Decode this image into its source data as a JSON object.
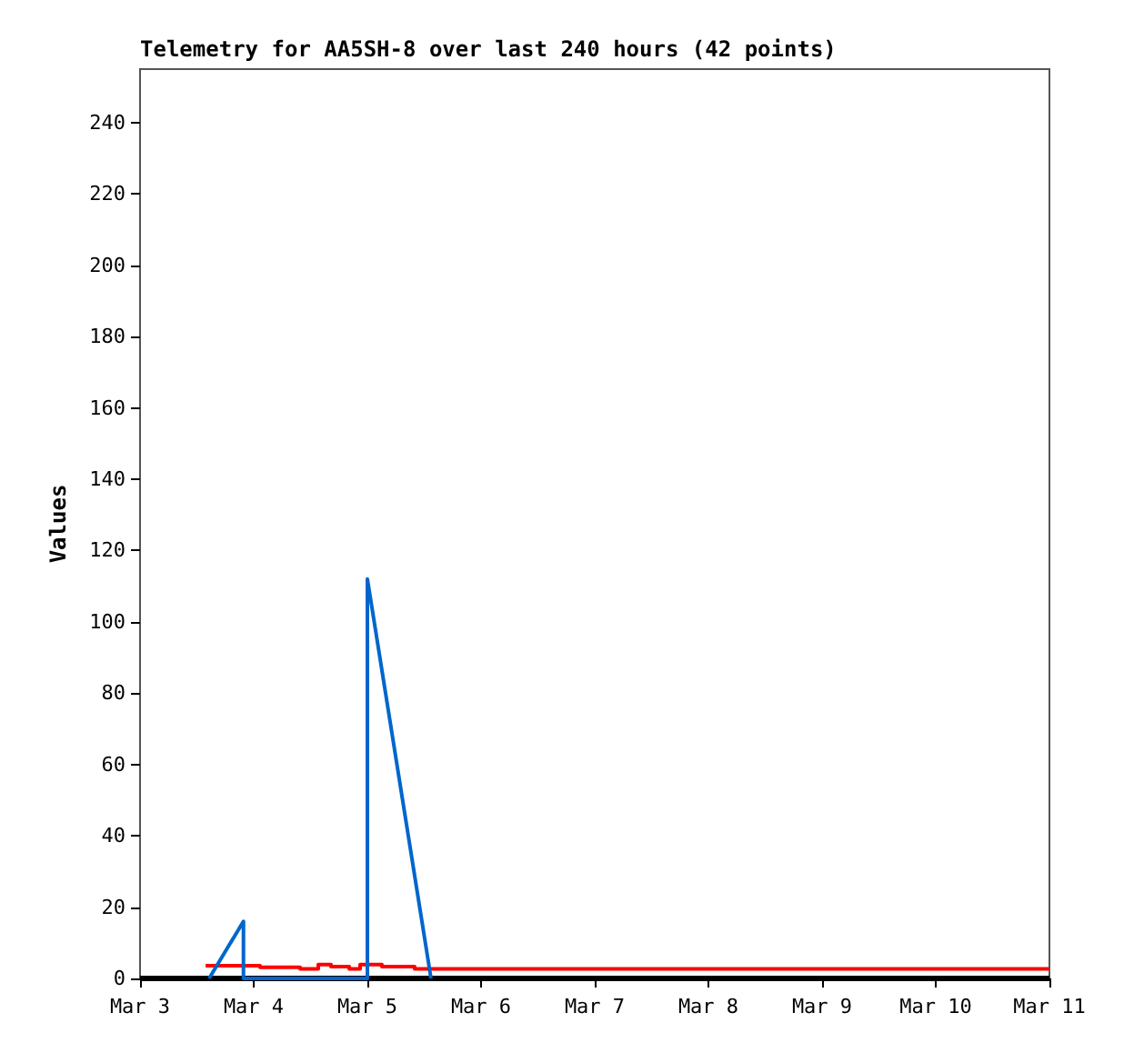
{
  "chart_data": {
    "type": "line",
    "title": "Telemetry for AA5SH-8 over last 240 hours (42 points)",
    "ylabel": "Values",
    "xlim": [
      "--03-03",
      "--03-11"
    ],
    "xticks": [
      {
        "value": "--03-03",
        "label": "Mar 3"
      },
      {
        "value": "--03-04",
        "label": "Mar 4"
      },
      {
        "value": "--03-05",
        "label": "Mar 5"
      },
      {
        "value": "--03-06",
        "label": "Mar 6"
      },
      {
        "value": "--03-07",
        "label": "Mar 7"
      },
      {
        "value": "--03-08",
        "label": "Mar 8"
      },
      {
        "value": "--03-09",
        "label": "Mar 9"
      },
      {
        "value": "--03-10",
        "label": "Mar 10"
      },
      {
        "value": "--03-11",
        "label": "Mar 11"
      }
    ],
    "ylim": [
      0,
      255
    ],
    "yticks": [
      0,
      20,
      40,
      60,
      80,
      100,
      120,
      140,
      160,
      180,
      200,
      220,
      240
    ],
    "grid": false,
    "marker": "none",
    "line_style": "solid",
    "series": [
      {
        "type": "step",
        "color": "#ff0000",
        "x": [
          "--03-03T13:50",
          "--03-04T01:20",
          "--03-04T09:48",
          "--03-04T13:38",
          "--03-04T16:19",
          "--03-04T20:10",
          "--03-04T22:28",
          "--03-05T03:04",
          "--03-05T09:59",
          "--03-05T13:26",
          "--03-11"
        ],
        "values": [
          3.6,
          3.1,
          2.7,
          3.9,
          3.3,
          2.7,
          3.9,
          3.3,
          2.7,
          2.7,
          2.7
        ]
      },
      {
        "color": "#0066cc",
        "x": [
          "--03-03T14:35",
          "--03-03T21:50",
          "--03-03T21:50",
          "--03-05",
          "--03-05",
          "--03-05T13:26"
        ],
        "values": [
          0,
          16,
          0,
          0,
          112,
          0
        ]
      }
    ]
  }
}
